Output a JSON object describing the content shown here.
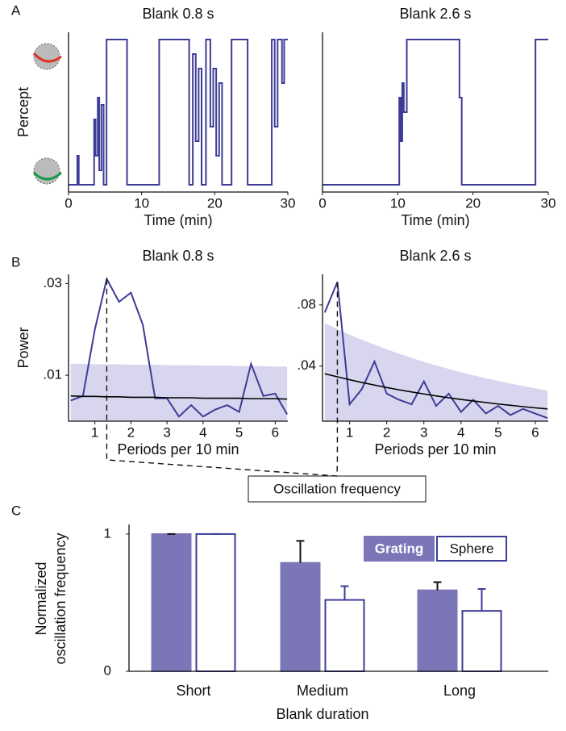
{
  "panel_labels": [
    "A",
    "B",
    "C"
  ],
  "annotation": "Oscillation frequency",
  "chart_data": [
    {
      "type": "line",
      "step": true,
      "title": "Blank 0.8 s",
      "xlabel": "Time (min)",
      "ylabel": "Percept",
      "x": [
        0,
        1.2,
        1.4,
        3.5,
        3.7,
        4.0,
        4.2,
        4.5,
        4.8,
        5.2,
        8.0,
        12.4,
        16.5,
        17.0,
        17.4,
        17.8,
        18.2,
        18.8,
        19.4,
        19.8,
        20.2,
        20.6,
        21.0,
        22.3,
        24.5,
        27.8,
        28.2,
        28.6,
        29.2,
        29.5,
        30
      ],
      "series": [
        {
          "color": "#3d3c96",
          "values": [
            0,
            0.2,
            0,
            0.45,
            0.2,
            0.6,
            0.1,
            0.55,
            0,
            1,
            0,
            1,
            0,
            0.9,
            0.3,
            0.8,
            0,
            1,
            0.4,
            0.8,
            0.2,
            0.7,
            0,
            1,
            0,
            1,
            0.4,
            1,
            0.7,
            1,
            1
          ]
        }
      ],
      "xlim": [
        0,
        30
      ],
      "xticks": [
        0,
        10,
        20,
        30
      ],
      "ylim": [
        -0.05,
        1.05
      ]
    },
    {
      "type": "line",
      "step": true,
      "title": "Blank 2.6 s",
      "xlabel": "Time (min)",
      "x": [
        0,
        10,
        10.2,
        10.4,
        10.6,
        10.8,
        11.2,
        18.2,
        18.5,
        28.0,
        28.3,
        30
      ],
      "series": [
        {
          "color": "#3d3c96",
          "values": [
            0,
            0,
            0.6,
            0.3,
            0.7,
            0.5,
            1,
            0.6,
            0,
            0,
            1,
            1
          ]
        }
      ],
      "xlim": [
        0,
        30
      ],
      "xticks": [
        0,
        10,
        20,
        30
      ],
      "ylim": [
        -0.05,
        1.05
      ]
    },
    {
      "type": "line",
      "title": "Blank 0.8 s",
      "xlabel": "Periods per 10 min",
      "ylabel": "Power",
      "x": [
        0.33,
        0.67,
        1,
        1.33,
        1.67,
        2,
        2.33,
        2.67,
        3,
        3.33,
        3.67,
        4,
        4.33,
        4.67,
        5,
        5.33,
        5.67,
        6,
        6.33
      ],
      "series": [
        {
          "style": "area",
          "color": "#d8d6ee",
          "values": [
            0.0125,
            0.0125,
            0.0124,
            0.0124,
            0.0124,
            0.0123,
            0.0123,
            0.0123,
            0.0122,
            0.0122,
            0.0122,
            0.0121,
            0.0121,
            0.0121,
            0.012,
            0.012,
            0.012,
            0.0119,
            0.0119
          ]
        },
        {
          "style": "line",
          "color": "#3d3c96",
          "peak": true,
          "values": [
            0.0045,
            0.0055,
            0.02,
            0.031,
            0.026,
            0.028,
            0.021,
            0.005,
            0.005,
            0.001,
            0.0035,
            0.001,
            0.0025,
            0.0035,
            0.002,
            0.0125,
            0.0055,
            0.006,
            0.0015
          ]
        },
        {
          "style": "line",
          "color": "#000000",
          "values": [
            0.0055,
            0.0054,
            0.0054,
            0.0053,
            0.0053,
            0.0052,
            0.0052,
            0.0052,
            0.0051,
            0.0051,
            0.0051,
            0.005,
            0.005,
            0.005,
            0.005,
            0.0049,
            0.0049,
            0.0049,
            0.0048
          ]
        }
      ],
      "xlim": [
        0.27,
        6.35
      ],
      "xticks": [
        1,
        2,
        3,
        4,
        5,
        6
      ],
      "ylim": [
        0,
        0.032
      ],
      "yticks": [
        {
          "value": 0.01,
          "label": ".01"
        },
        {
          "value": 0.03,
          "label": ".03"
        }
      ]
    },
    {
      "type": "line",
      "title": "Blank 2.6 s",
      "xlabel": "Periods per 10 min",
      "x": [
        0.33,
        0.67,
        1,
        1.33,
        1.67,
        2,
        2.33,
        2.67,
        3,
        3.33,
        3.67,
        4,
        4.33,
        4.67,
        5,
        5.33,
        5.67,
        6,
        6.33
      ],
      "series": [
        {
          "style": "area",
          "color": "#d8d6ee",
          "values": [
            0.068,
            0.0642,
            0.0606,
            0.0572,
            0.054,
            0.051,
            0.0481,
            0.0454,
            0.0428,
            0.0404,
            0.0382,
            0.036,
            0.034,
            0.0321,
            0.0303,
            0.0286,
            0.027,
            0.0255,
            0.024
          ]
        },
        {
          "style": "line",
          "color": "#3d3c96",
          "peak": true,
          "values": [
            0.075,
            0.095,
            0.015,
            0.025,
            0.043,
            0.022,
            0.018,
            0.015,
            0.03,
            0.014,
            0.022,
            0.01,
            0.018,
            0.009,
            0.014,
            0.008,
            0.012,
            0.009,
            0.006
          ]
        },
        {
          "style": "line",
          "color": "#000000",
          "values": [
            0.035,
            0.033,
            0.0311,
            0.0293,
            0.0276,
            0.026,
            0.0245,
            0.0231,
            0.0218,
            0.0205,
            0.0193,
            0.0182,
            0.0172,
            0.0162,
            0.0152,
            0.0144,
            0.0135,
            0.0127,
            0.012
          ]
        }
      ],
      "xlim": [
        0.27,
        6.35
      ],
      "xticks": [
        1,
        2,
        3,
        4,
        5,
        6
      ],
      "ylim": [
        0.004,
        0.1
      ],
      "yticks": [
        {
          "value": 0.04,
          "label": ".04"
        },
        {
          "value": 0.08,
          "label": ".08"
        }
      ]
    },
    {
      "type": "bar",
      "xlabel": "Blank duration",
      "ylabel": [
        "Normalized",
        "oscillation frequency"
      ],
      "categories": [
        "Short",
        "Medium",
        "Long"
      ],
      "series": [
        {
          "name": "Grating",
          "color": "#7b76b8",
          "filled": true,
          "values": [
            1,
            0.79,
            0.59
          ],
          "errors": [
            0,
            0.16,
            0.06
          ]
        },
        {
          "name": "Sphere",
          "color": "#3d3c96",
          "filled": false,
          "values": [
            1,
            0.52,
            0.44
          ],
          "errors": [
            0,
            0.1,
            0.16
          ]
        }
      ],
      "ylim": [
        0,
        1.07
      ],
      "yticks": [
        0,
        1
      ],
      "legend": "upper right"
    }
  ]
}
